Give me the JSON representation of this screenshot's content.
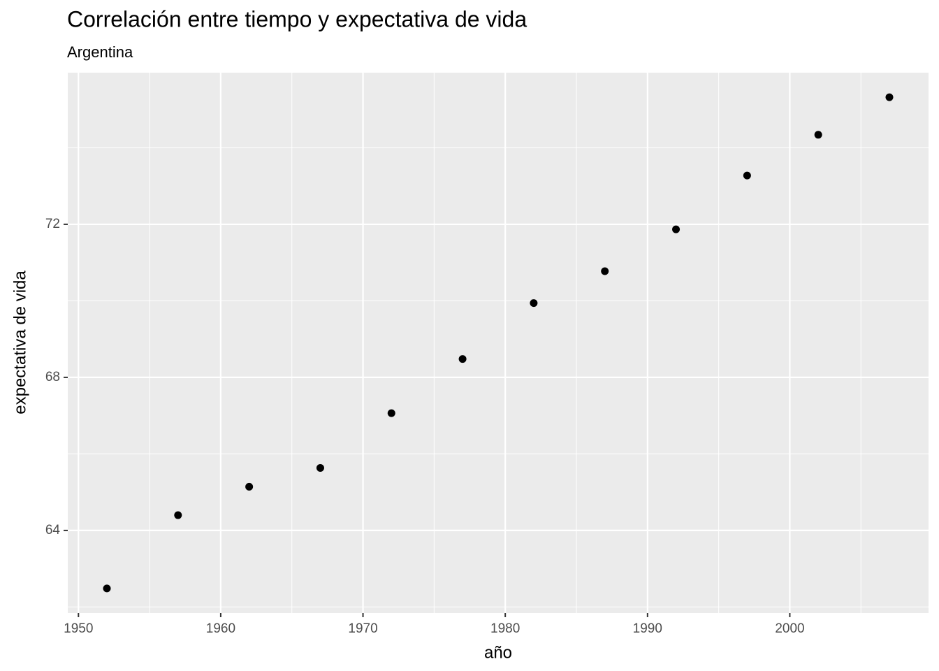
{
  "chart_data": {
    "type": "scatter",
    "title": "Correlación entre tiempo y expectativa de vida",
    "subtitle": "Argentina",
    "x_label": "año",
    "y_label": "expectativa de vida",
    "x": [
      1952,
      1957,
      1962,
      1967,
      1972,
      1977,
      1982,
      1987,
      1992,
      1997,
      2002,
      2007
    ],
    "series": [
      {
        "color": "#000000",
        "values": [
          62.485,
          64.399,
          65.142,
          65.634,
          67.065,
          68.481,
          69.942,
          70.774,
          71.868,
          73.275,
          74.34,
          75.32
        ]
      }
    ],
    "xlim": [
      1949.25,
      2009.75
    ],
    "ylim": [
      61.843,
      75.962
    ],
    "xticks": [
      1950,
      1960,
      1970,
      1980,
      1990,
      2000
    ],
    "yticks": [
      64,
      68,
      72
    ],
    "x_minor_ticks": [
      1955,
      1965,
      1975,
      1985,
      1995,
      2005
    ],
    "y_minor_ticks": [
      62,
      66,
      70,
      74
    ],
    "grid": true,
    "panel_color": "#ebebeb"
  }
}
